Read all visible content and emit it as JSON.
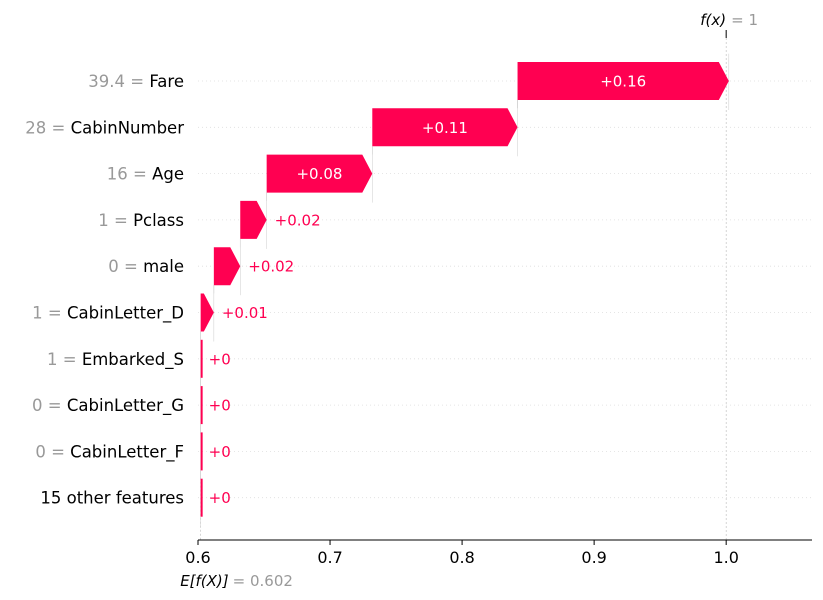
{
  "chart_data": {
    "type": "waterfall",
    "base_value": 0.602,
    "output_value": 1,
    "fx_label": "f(x)",
    "fx_value_text": "= 1",
    "ex_label": "E[f(X)]",
    "ex_value_text": "= 0.602",
    "xlim": [
      0.6,
      1.065
    ],
    "x_ticks": [
      0.6,
      0.7,
      0.8,
      0.9,
      1.0
    ],
    "x_tick_labels": [
      "0.6",
      "0.7",
      "0.8",
      "0.9",
      "1.0"
    ],
    "features": [
      {
        "value": "39.4",
        "name": "Fare",
        "contribution": 0.16,
        "label": "+0.16"
      },
      {
        "value": "28",
        "name": "CabinNumber",
        "contribution": 0.11,
        "label": "+0.11"
      },
      {
        "value": "16",
        "name": "Age",
        "contribution": 0.08,
        "label": "+0.08"
      },
      {
        "value": "1",
        "name": "Pclass",
        "contribution": 0.02,
        "label": "+0.02"
      },
      {
        "value": "0",
        "name": "male",
        "contribution": 0.02,
        "label": "+0.02"
      },
      {
        "value": "1",
        "name": "CabinLetter_D",
        "contribution": 0.01,
        "label": "+0.01"
      },
      {
        "value": "1",
        "name": "Embarked_S",
        "contribution": 0.0,
        "label": "+0"
      },
      {
        "value": "0",
        "name": "CabinLetter_G",
        "contribution": 0.0,
        "label": "+0"
      },
      {
        "value": "0",
        "name": "CabinLetter_F",
        "contribution": 0.0,
        "label": "+0"
      },
      {
        "value": "",
        "name": "15 other features",
        "contribution": 0.0,
        "label": "+0"
      }
    ],
    "colors": {
      "positive": "#ff0051",
      "value_text": "#999999",
      "feature_text": "#000000",
      "label_inside": "#ffffff",
      "grid": "#cccccc"
    }
  }
}
